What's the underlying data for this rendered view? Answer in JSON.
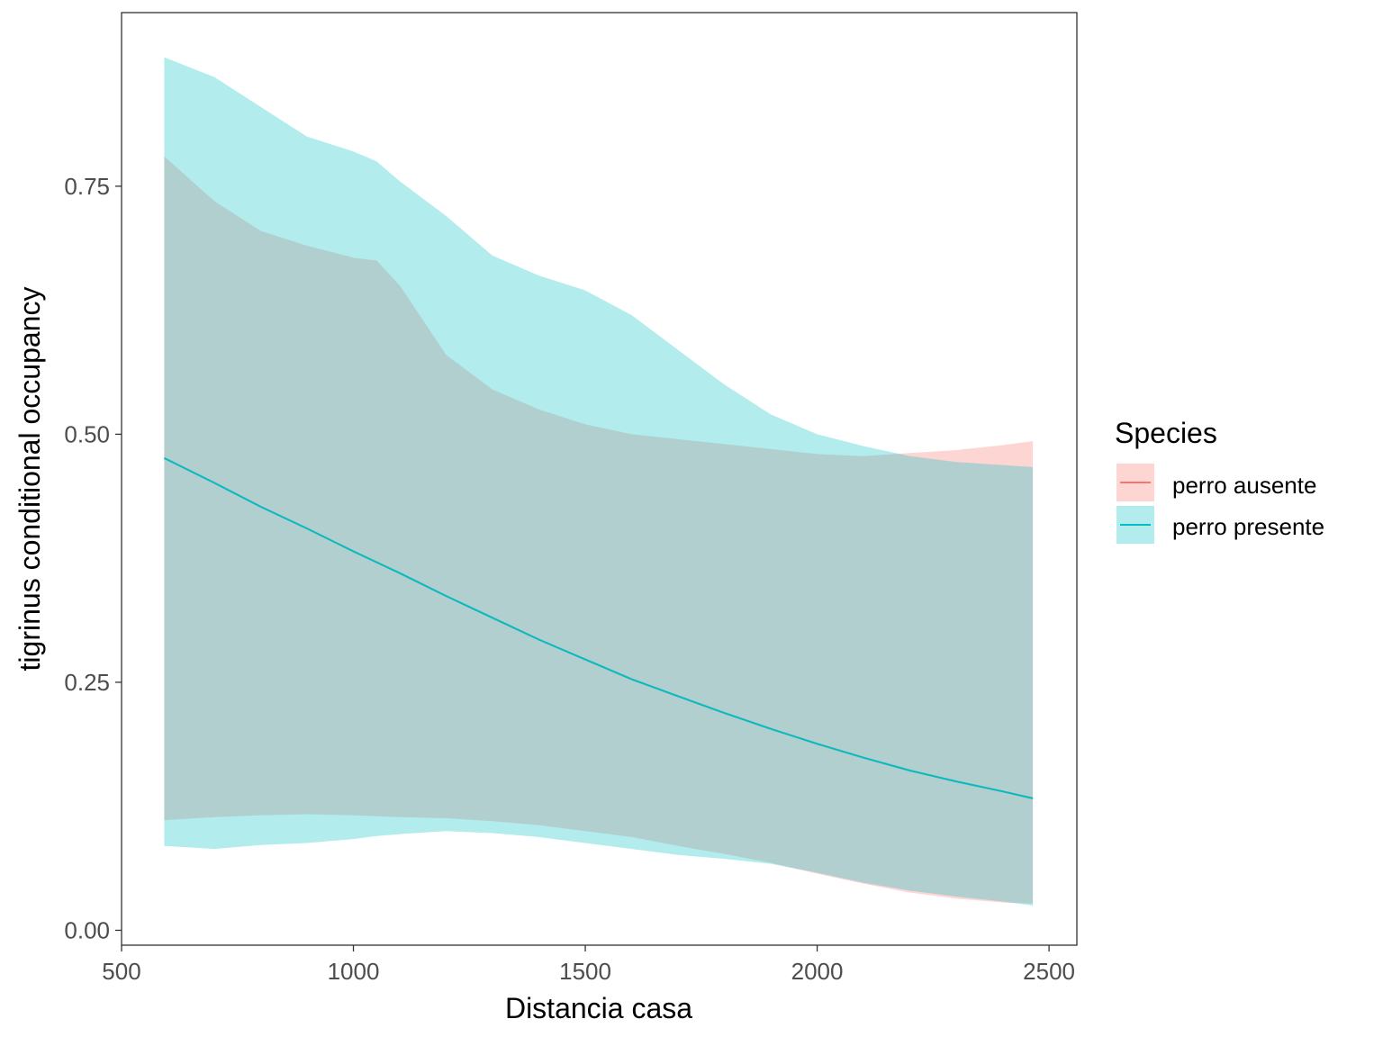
{
  "chart_data": {
    "type": "area",
    "title": "",
    "xlabel": "Distancia casa",
    "ylabel": "tigrinus conditional occupancy",
    "xlim": [
      500,
      2560
    ],
    "ylim": [
      -0.015,
      0.925
    ],
    "xticks": [
      500,
      1000,
      1500,
      2000,
      2500
    ],
    "xtick_labels": [
      "500",
      "1000",
      "1500",
      "2000",
      "2500"
    ],
    "yticks": [
      0.0,
      0.25,
      0.5,
      0.75
    ],
    "ytick_labels": [
      "0.00",
      "0.25",
      "0.50",
      "0.75"
    ],
    "grid": false,
    "legend": {
      "title": "Species",
      "position": "right",
      "entries": [
        "perro ausente",
        "perro presente"
      ]
    },
    "series": [
      {
        "name": "perro ausente",
        "color": "#F8766D",
        "x": [
          592,
          700,
          800,
          900,
          1000,
          1050,
          1100,
          1200,
          1300,
          1400,
          1500,
          1600,
          1700,
          1800,
          1900,
          2000,
          2100,
          2200,
          2300,
          2400,
          2465
        ],
        "y": [
          0.476,
          0.451,
          0.427,
          0.405,
          0.382,
          0.371,
          0.36,
          0.337,
          0.315,
          0.293,
          0.273,
          0.253,
          0.236,
          0.219,
          0.203,
          0.188,
          0.174,
          0.161,
          0.15,
          0.14,
          0.133
        ],
        "lower": [
          0.111,
          0.114,
          0.116,
          0.117,
          0.116,
          0.115,
          0.114,
          0.113,
          0.11,
          0.106,
          0.1,
          0.094,
          0.085,
          0.077,
          0.068,
          0.057,
          0.047,
          0.038,
          0.032,
          0.028,
          0.027
        ],
        "upper": [
          0.78,
          0.735,
          0.705,
          0.69,
          0.678,
          0.675,
          0.65,
          0.58,
          0.545,
          0.525,
          0.51,
          0.5,
          0.495,
          0.49,
          0.485,
          0.48,
          0.478,
          0.481,
          0.484,
          0.489,
          0.493
        ]
      },
      {
        "name": "perro presente",
        "color": "#00BFC4",
        "x": [
          592,
          700,
          800,
          900,
          1000,
          1050,
          1100,
          1200,
          1300,
          1400,
          1500,
          1600,
          1700,
          1800,
          1900,
          2000,
          2100,
          2200,
          2300,
          2400,
          2465
        ],
        "y": [
          0.476,
          0.451,
          0.427,
          0.405,
          0.382,
          0.371,
          0.36,
          0.337,
          0.315,
          0.293,
          0.273,
          0.253,
          0.236,
          0.219,
          0.203,
          0.188,
          0.174,
          0.161,
          0.15,
          0.14,
          0.133
        ],
        "lower": [
          0.085,
          0.082,
          0.086,
          0.088,
          0.092,
          0.095,
          0.097,
          0.1,
          0.098,
          0.094,
          0.088,
          0.082,
          0.076,
          0.072,
          0.067,
          0.058,
          0.048,
          0.04,
          0.034,
          0.029,
          0.025
        ],
        "upper": [
          0.88,
          0.86,
          0.83,
          0.8,
          0.785,
          0.775,
          0.755,
          0.72,
          0.68,
          0.66,
          0.645,
          0.62,
          0.585,
          0.55,
          0.52,
          0.5,
          0.488,
          0.478,
          0.472,
          0.469,
          0.467
        ]
      }
    ]
  }
}
